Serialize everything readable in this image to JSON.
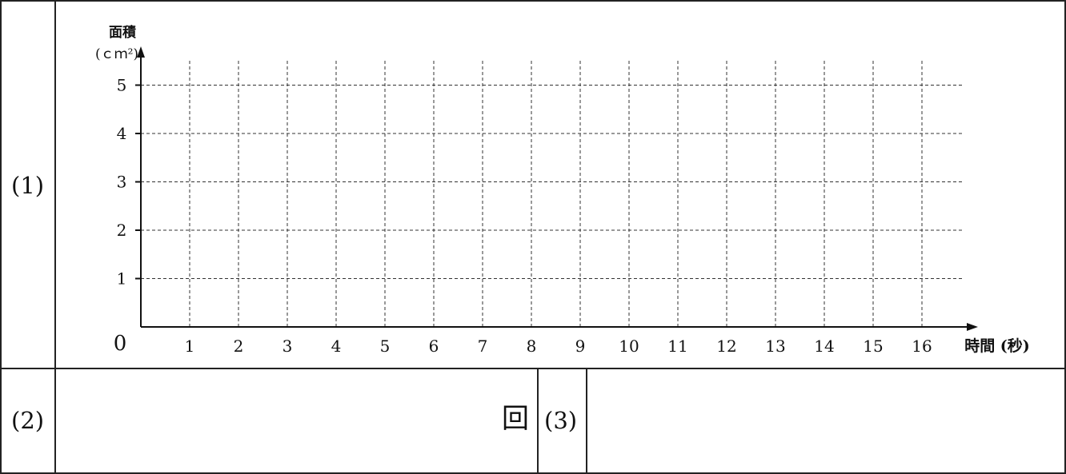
{
  "rows": {
    "q1_label": "(1)",
    "q2_label": "(2)",
    "q2_unit": "回",
    "q3_label": "(3)"
  },
  "chart_data": {
    "type": "line",
    "title": "",
    "ylabel_line1": "面積",
    "ylabel_line2": "(ｃｍ²)",
    "xlabel": "時間 (秒)",
    "origin_label": "0",
    "xlim": [
      0,
      16
    ],
    "ylim": [
      0,
      5
    ],
    "x_ticks": [
      1,
      2,
      3,
      4,
      5,
      6,
      7,
      8,
      9,
      10,
      11,
      12,
      13,
      14,
      15,
      16
    ],
    "y_ticks": [
      1,
      2,
      3,
      4,
      5
    ],
    "grid": true,
    "series": []
  }
}
